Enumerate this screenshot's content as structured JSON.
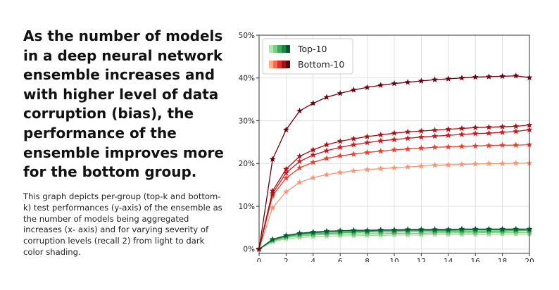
{
  "headline": "As the number of models in a deep neural network ensemble increases and with higher level of data corruption (bias), the performance of the ensemble improves more for the bottom group.",
  "description": "This graph depicts per-group (top-k and bottom-k) test performances (y-axis) of the ensemble as the number of models being aggregated increases (x- axis) and for varying severity of corruption levels (recall 2) from light to dark color shading.",
  "chart_data": {
    "type": "line",
    "title": "",
    "xlabel": "",
    "ylabel": "",
    "xlim": [
      0,
      20
    ],
    "ylim": [
      -0.01,
      0.5
    ],
    "xticks": [
      0,
      2,
      4,
      6,
      8,
      10,
      12,
      14,
      16,
      18,
      20
    ],
    "yticks": [
      0,
      0.1,
      0.2,
      0.3,
      0.4,
      0.5
    ],
    "ytick_labels": [
      "0%",
      "10%",
      "20%",
      "30%",
      "40%",
      "50%"
    ],
    "grid": true,
    "legend_position": "top-left",
    "legend": [
      {
        "label": "Top-10",
        "colors": [
          "#b7e4b5",
          "#7fcc84",
          "#41ab5d",
          "#1d8642",
          "#005a2c"
        ]
      },
      {
        "label": "Bottom-10",
        "colors": [
          "#fcae91",
          "#fb6a4a",
          "#de2d26",
          "#a50f15",
          "#67000d"
        ]
      }
    ],
    "x": [
      0,
      1,
      2,
      3,
      4,
      5,
      6,
      7,
      8,
      9,
      10,
      11,
      12,
      13,
      14,
      15,
      16,
      17,
      18,
      19,
      20
    ],
    "series": [
      {
        "group": "Bottom-10",
        "color": "#fc9272",
        "values": [
          0,
          0.097,
          0.134,
          0.156,
          0.167,
          0.174,
          0.179,
          0.183,
          0.186,
          0.188,
          0.19,
          0.192,
          0.194,
          0.196,
          0.197,
          0.198,
          0.199,
          0.2,
          0.2,
          0.201,
          0.201
        ]
      },
      {
        "group": "Bottom-10",
        "color": "#ef3b2c",
        "values": [
          0,
          0.125,
          0.166,
          0.19,
          0.203,
          0.212,
          0.218,
          0.222,
          0.226,
          0.229,
          0.232,
          0.234,
          0.236,
          0.238,
          0.239,
          0.24,
          0.241,
          0.242,
          0.243,
          0.243,
          0.244
        ]
      },
      {
        "group": "Bottom-10",
        "color": "#cb181d",
        "values": [
          0,
          0.13,
          0.178,
          0.205,
          0.22,
          0.23,
          0.238,
          0.244,
          0.249,
          0.253,
          0.256,
          0.259,
          0.262,
          0.264,
          0.266,
          0.268,
          0.27,
          0.271,
          0.273,
          0.275,
          0.279
        ]
      },
      {
        "group": "Bottom-10",
        "color": "#a50f15",
        "values": [
          0,
          0.136,
          0.187,
          0.217,
          0.232,
          0.244,
          0.252,
          0.258,
          0.263,
          0.267,
          0.271,
          0.274,
          0.276,
          0.278,
          0.28,
          0.282,
          0.284,
          0.285,
          0.286,
          0.287,
          0.29
        ]
      },
      {
        "group": "Bottom-10",
        "color": "#67000d",
        "values": [
          0,
          0.21,
          0.279,
          0.323,
          0.341,
          0.355,
          0.364,
          0.372,
          0.378,
          0.383,
          0.387,
          0.39,
          0.393,
          0.396,
          0.398,
          0.4,
          0.402,
          0.403,
          0.404,
          0.405,
          0.401
        ]
      },
      {
        "group": "Top-10",
        "color": "#a1d99b",
        "values": [
          0,
          0.017,
          0.024,
          0.027,
          0.029,
          0.03,
          0.031,
          0.031,
          0.032,
          0.032,
          0.033,
          0.033,
          0.033,
          0.034,
          0.034,
          0.034,
          0.034,
          0.034,
          0.035,
          0.035,
          0.035
        ]
      },
      {
        "group": "Top-10",
        "color": "#74c476",
        "values": [
          0,
          0.019,
          0.027,
          0.031,
          0.033,
          0.034,
          0.035,
          0.035,
          0.036,
          0.036,
          0.037,
          0.037,
          0.037,
          0.038,
          0.038,
          0.038,
          0.038,
          0.039,
          0.039,
          0.039,
          0.039
        ]
      },
      {
        "group": "Top-10",
        "color": "#41ab5d",
        "values": [
          0,
          0.021,
          0.029,
          0.034,
          0.036,
          0.037,
          0.038,
          0.039,
          0.04,
          0.04,
          0.04,
          0.041,
          0.041,
          0.041,
          0.042,
          0.042,
          0.042,
          0.042,
          0.042,
          0.043,
          0.043
        ]
      },
      {
        "group": "Top-10",
        "color": "#238b45",
        "values": [
          0,
          0.022,
          0.031,
          0.036,
          0.038,
          0.04,
          0.041,
          0.042,
          0.042,
          0.043,
          0.043,
          0.044,
          0.044,
          0.044,
          0.044,
          0.045,
          0.045,
          0.045,
          0.045,
          0.045,
          0.046
        ]
      },
      {
        "group": "Top-10",
        "color": "#005a32",
        "values": [
          0,
          0.023,
          0.032,
          0.037,
          0.04,
          0.042,
          0.043,
          0.044,
          0.044,
          0.045,
          0.045,
          0.046,
          0.046,
          0.046,
          0.046,
          0.047,
          0.047,
          0.047,
          0.047,
          0.047,
          0.047
        ]
      }
    ]
  }
}
